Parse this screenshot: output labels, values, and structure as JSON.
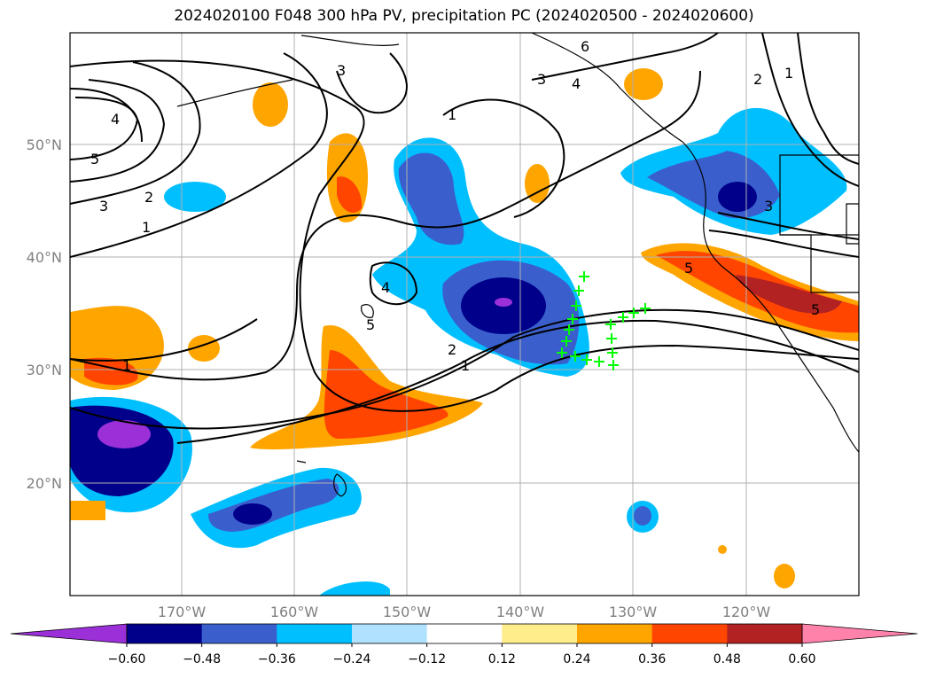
{
  "title": "2024020100 F048 300 hPa PV, precipitation PC (2024020500 - 2024020600)",
  "lat_labels": [
    "20°N",
    "30°N",
    "40°N",
    "50°N"
  ],
  "lon_labels": [
    "170°W",
    "160°W",
    "150°W",
    "140°W",
    "130°W",
    "120°W"
  ],
  "colorbar": {
    "ticks": [
      "−0.60",
      "−0.48",
      "−0.36",
      "−0.24",
      "−0.12",
      "0.12",
      "0.24",
      "0.36",
      "0.48",
      "0.60"
    ],
    "colors": [
      "#9b30d9",
      "#00008b",
      "#3a5fcd",
      "#00bfff",
      "#b0e2ff",
      "#ffffff",
      "#ffec8b",
      "#ffa500",
      "#ff4500",
      "#b22222",
      "#ff82ab"
    ]
  },
  "contour_labels": [
    "1",
    "2",
    "3",
    "4",
    "5",
    "6"
  ],
  "marker_color": "#00ff00"
}
